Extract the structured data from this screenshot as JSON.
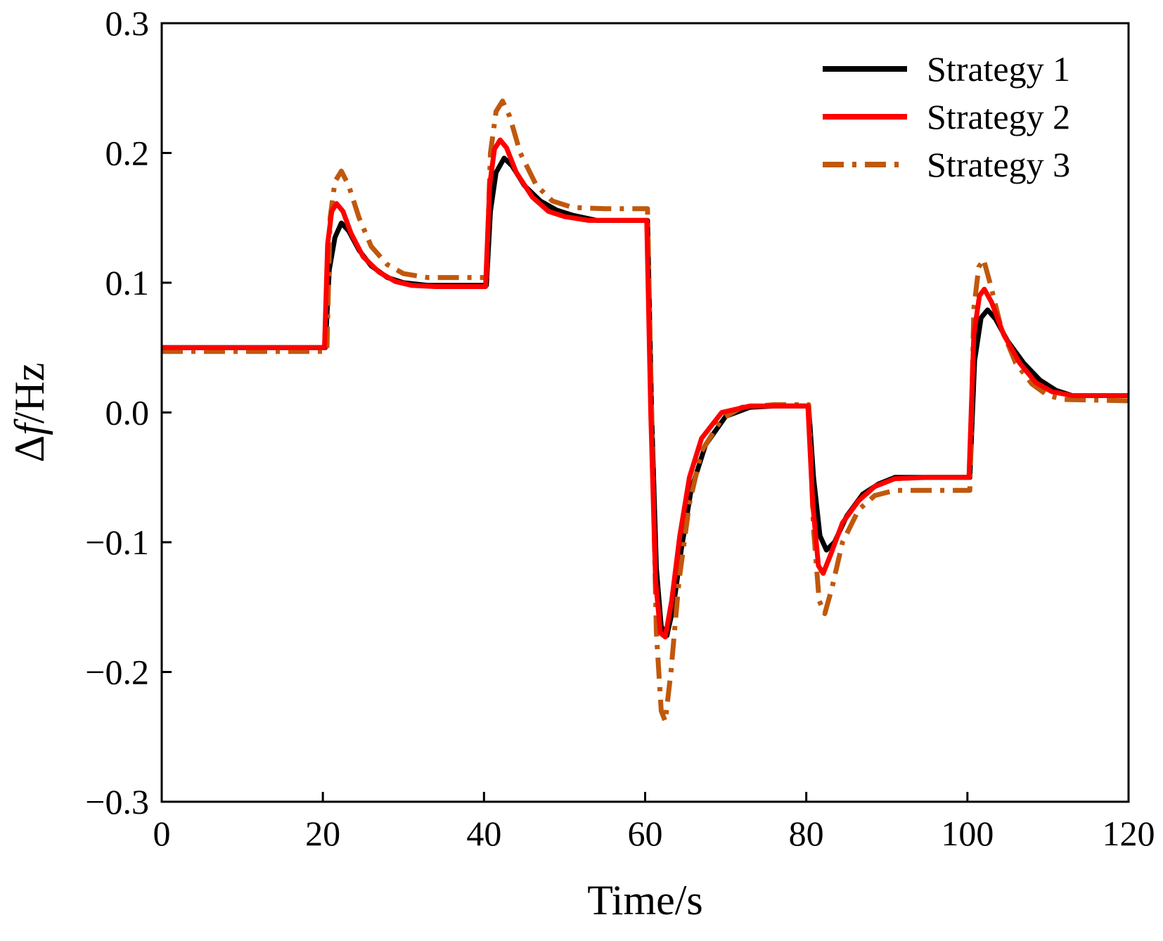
{
  "chart_data": {
    "type": "line",
    "title": "",
    "xlabel": "Time/s",
    "ylabel": {
      "prefix": "Δ",
      "italic": "f",
      "suffix": "/Hz"
    },
    "xlim": [
      0,
      120
    ],
    "ylim": [
      -0.3,
      0.3
    ],
    "x_ticks": [
      0,
      20,
      40,
      60,
      80,
      100,
      120
    ],
    "x_tick_labels": [
      "0",
      "20",
      "40",
      "60",
      "80",
      "100",
      "120"
    ],
    "y_ticks": [
      -0.3,
      -0.2,
      -0.1,
      0.0,
      0.1,
      0.2,
      0.3
    ],
    "y_tick_labels": [
      "−0.3",
      "−0.2",
      "−0.1",
      "0.0",
      "0.1",
      "0.2",
      "0.3"
    ],
    "grid": false,
    "legend_position": "top-right",
    "series": [
      {
        "name": "Strategy 1",
        "color": "#000000",
        "style": "solid",
        "points": [
          [
            0,
            0.05
          ],
          [
            20,
            0.05
          ],
          [
            20.3,
            0.05
          ],
          [
            20.8,
            0.11
          ],
          [
            21.5,
            0.135
          ],
          [
            22.3,
            0.146
          ],
          [
            23.2,
            0.14
          ],
          [
            24.5,
            0.125
          ],
          [
            26,
            0.113
          ],
          [
            28,
            0.104
          ],
          [
            30,
            0.1
          ],
          [
            33,
            0.098
          ],
          [
            40,
            0.098
          ],
          [
            40.3,
            0.098
          ],
          [
            40.8,
            0.155
          ],
          [
            41.5,
            0.185
          ],
          [
            42.5,
            0.196
          ],
          [
            43.5,
            0.19
          ],
          [
            45,
            0.175
          ],
          [
            47,
            0.163
          ],
          [
            49,
            0.156
          ],
          [
            51,
            0.152
          ],
          [
            54,
            0.148
          ],
          [
            60,
            0.148
          ],
          [
            60.3,
            0.148
          ],
          [
            60.8,
            0.0
          ],
          [
            61.4,
            -0.12
          ],
          [
            62,
            -0.165
          ],
          [
            62.7,
            -0.172
          ],
          [
            63.5,
            -0.15
          ],
          [
            64.5,
            -0.105
          ],
          [
            65.7,
            -0.06
          ],
          [
            67.5,
            -0.025
          ],
          [
            70,
            -0.003
          ],
          [
            73,
            0.004
          ],
          [
            76,
            0.005
          ],
          [
            80,
            0.005
          ],
          [
            80.3,
            0.005
          ],
          [
            80.9,
            -0.05
          ],
          [
            81.7,
            -0.095
          ],
          [
            82.5,
            -0.106
          ],
          [
            83.5,
            -0.1
          ],
          [
            85,
            -0.08
          ],
          [
            87,
            -0.063
          ],
          [
            89,
            -0.055
          ],
          [
            91,
            -0.05
          ],
          [
            95,
            -0.05
          ],
          [
            100,
            -0.05
          ],
          [
            100.3,
            -0.05
          ],
          [
            100.9,
            0.04
          ],
          [
            101.7,
            0.073
          ],
          [
            102.5,
            0.079
          ],
          [
            103.5,
            0.072
          ],
          [
            105,
            0.055
          ],
          [
            107,
            0.038
          ],
          [
            109,
            0.025
          ],
          [
            111,
            0.017
          ],
          [
            113,
            0.013
          ],
          [
            120,
            0.013
          ]
        ]
      },
      {
        "name": "Strategy 2",
        "color": "#ff0000",
        "style": "solid",
        "points": [
          [
            0,
            0.05
          ],
          [
            20,
            0.05
          ],
          [
            20.2,
            0.05
          ],
          [
            20.6,
            0.13
          ],
          [
            21.1,
            0.155
          ],
          [
            21.7,
            0.161
          ],
          [
            22.5,
            0.155
          ],
          [
            23.5,
            0.138
          ],
          [
            25,
            0.12
          ],
          [
            27,
            0.108
          ],
          [
            29,
            0.101
          ],
          [
            31,
            0.098
          ],
          [
            34,
            0.097
          ],
          [
            40,
            0.097
          ],
          [
            40.2,
            0.097
          ],
          [
            40.7,
            0.175
          ],
          [
            41.3,
            0.203
          ],
          [
            42,
            0.21
          ],
          [
            42.8,
            0.204
          ],
          [
            44,
            0.185
          ],
          [
            46,
            0.166
          ],
          [
            48,
            0.155
          ],
          [
            50,
            0.151
          ],
          [
            53,
            0.148
          ],
          [
            60,
            0.148
          ],
          [
            60.2,
            0.148
          ],
          [
            60.7,
            0.0
          ],
          [
            61.3,
            -0.13
          ],
          [
            61.9,
            -0.17
          ],
          [
            62.5,
            -0.173
          ],
          [
            63.3,
            -0.145
          ],
          [
            64.3,
            -0.095
          ],
          [
            65.5,
            -0.05
          ],
          [
            67,
            -0.02
          ],
          [
            69.5,
            0.0
          ],
          [
            73,
            0.005
          ],
          [
            80,
            0.005
          ],
          [
            80.2,
            0.005
          ],
          [
            80.8,
            -0.07
          ],
          [
            81.5,
            -0.118
          ],
          [
            82.1,
            -0.124
          ],
          [
            83,
            -0.11
          ],
          [
            84.5,
            -0.085
          ],
          [
            86.5,
            -0.068
          ],
          [
            88.5,
            -0.057
          ],
          [
            91,
            -0.051
          ],
          [
            95,
            -0.05
          ],
          [
            100,
            -0.05
          ],
          [
            100.2,
            -0.05
          ],
          [
            100.8,
            0.06
          ],
          [
            101.5,
            0.09
          ],
          [
            102.1,
            0.095
          ],
          [
            103,
            0.085
          ],
          [
            104.5,
            0.06
          ],
          [
            106.5,
            0.038
          ],
          [
            108.5,
            0.023
          ],
          [
            110.5,
            0.016
          ],
          [
            113,
            0.013
          ],
          [
            120,
            0.013
          ]
        ]
      },
      {
        "name": "Strategy 3",
        "color": "#c0580c",
        "style": "dashdot",
        "points": [
          [
            0,
            0.047
          ],
          [
            20,
            0.047
          ],
          [
            20.5,
            0.047
          ],
          [
            20.9,
            0.15
          ],
          [
            21.5,
            0.178
          ],
          [
            22.3,
            0.186
          ],
          [
            23.2,
            0.175
          ],
          [
            24.5,
            0.15
          ],
          [
            26,
            0.128
          ],
          [
            28,
            0.114
          ],
          [
            30,
            0.107
          ],
          [
            33,
            0.104
          ],
          [
            40,
            0.104
          ],
          [
            40.3,
            0.104
          ],
          [
            40.8,
            0.2
          ],
          [
            41.5,
            0.232
          ],
          [
            42.3,
            0.24
          ],
          [
            43.2,
            0.228
          ],
          [
            44.5,
            0.2
          ],
          [
            46.5,
            0.175
          ],
          [
            48.5,
            0.163
          ],
          [
            51,
            0.158
          ],
          [
            55,
            0.157
          ],
          [
            60,
            0.157
          ],
          [
            60.3,
            0.157
          ],
          [
            60.8,
            0.0
          ],
          [
            61.4,
            -0.17
          ],
          [
            62,
            -0.23
          ],
          [
            62.5,
            -0.238
          ],
          [
            63.2,
            -0.2
          ],
          [
            64.2,
            -0.13
          ],
          [
            65.5,
            -0.07
          ],
          [
            67,
            -0.03
          ],
          [
            69.5,
            -0.005
          ],
          [
            72,
            0.004
          ],
          [
            76,
            0.006
          ],
          [
            80,
            0.006
          ],
          [
            80.3,
            0.006
          ],
          [
            80.9,
            -0.09
          ],
          [
            81.6,
            -0.145
          ],
          [
            82.3,
            -0.155
          ],
          [
            83.2,
            -0.135
          ],
          [
            84.5,
            -0.1
          ],
          [
            86.5,
            -0.075
          ],
          [
            88.5,
            -0.064
          ],
          [
            91,
            -0.06
          ],
          [
            95,
            -0.06
          ],
          [
            100,
            -0.06
          ],
          [
            100.3,
            -0.06
          ],
          [
            100.8,
            0.08
          ],
          [
            101.4,
            0.112
          ],
          [
            102,
            0.118
          ],
          [
            102.8,
            0.1
          ],
          [
            104.2,
            0.065
          ],
          [
            106,
            0.038
          ],
          [
            108,
            0.022
          ],
          [
            110,
            0.013
          ],
          [
            112,
            0.01
          ],
          [
            120,
            0.009
          ]
        ]
      }
    ]
  }
}
